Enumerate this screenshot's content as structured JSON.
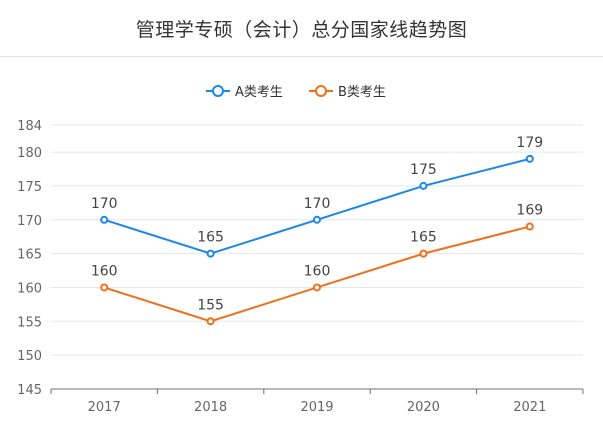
{
  "chart_data": {
    "type": "line",
    "title": "管理学专硕（会计）总分国家线趋势图",
    "categories": [
      "2017",
      "2018",
      "2019",
      "2020",
      "2021"
    ],
    "series": [
      {
        "name": "A类考生",
        "values": [
          170,
          165,
          170,
          175,
          179
        ],
        "color": "#1a88e8"
      },
      {
        "name": "B类考生",
        "values": [
          160,
          155,
          160,
          165,
          169
        ],
        "color": "#f0701a"
      }
    ],
    "y_ticks": [
      145,
      150,
      155,
      160,
      165,
      170,
      175,
      180,
      184
    ],
    "ylim": [
      145,
      184
    ],
    "grid": true,
    "legend_position": "top-center",
    "data_labels": true
  }
}
